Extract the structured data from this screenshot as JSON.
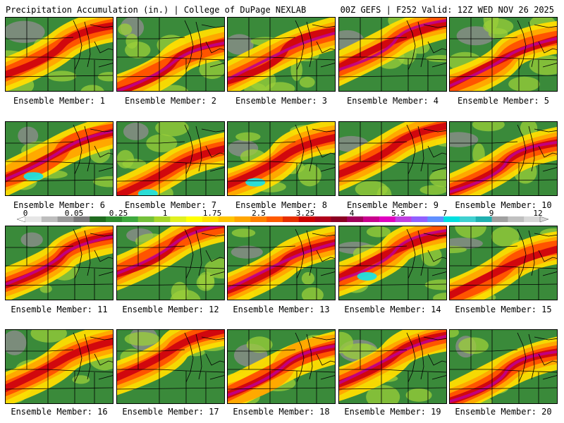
{
  "header": {
    "title": "Precipitation Accumulation (in.) | College of DuPage NEXLAB",
    "run_info": "00Z GEFS | F252 Valid: 12Z WED NOV 26 2025"
  },
  "members": [
    {
      "label": "Ensemble Member: 1"
    },
    {
      "label": "Ensemble Member: 2"
    },
    {
      "label": "Ensemble Member: 3"
    },
    {
      "label": "Ensemble Member: 4"
    },
    {
      "label": "Ensemble Member: 5"
    },
    {
      "label": "Ensemble Member: 6"
    },
    {
      "label": "Ensemble Member: 7"
    },
    {
      "label": "Ensemble Member: 8"
    },
    {
      "label": "Ensemble Member: 9"
    },
    {
      "label": "Ensemble Member: 10"
    },
    {
      "label": "Ensemble Member: 11"
    },
    {
      "label": "Ensemble Member: 12"
    },
    {
      "label": "Ensemble Member: 13"
    },
    {
      "label": "Ensemble Member: 14"
    },
    {
      "label": "Ensemble Member: 15"
    },
    {
      "label": "Ensemble Member: 16"
    },
    {
      "label": "Ensemble Member: 17"
    },
    {
      "label": "Ensemble Member: 18"
    },
    {
      "label": "Ensemble Member: 19"
    },
    {
      "label": "Ensemble Member: 20"
    }
  ],
  "legend": {
    "ticks": [
      "0",
      "0.05",
      "0.25",
      "1",
      "1.75",
      "2.5",
      "3.25",
      "4",
      "5.5",
      "7",
      "9",
      "12"
    ],
    "colors": [
      "#e6e6e6",
      "#bdbdbd",
      "#9b9b9b",
      "#7a7a7a",
      "#1f6b1f",
      "#2e8b2e",
      "#3ea83e",
      "#74c03a",
      "#a6d62a",
      "#e0f020",
      "#ffff00",
      "#ffe200",
      "#ffc400",
      "#ffa500",
      "#ff8000",
      "#ff5a00",
      "#e62e00",
      "#cc0000",
      "#b0001a",
      "#8b0022",
      "#a0005a",
      "#c8008c",
      "#e000c0",
      "#c040e0",
      "#9060ff",
      "#6090ff",
      "#00e0e0",
      "#40d0d0",
      "#20b0b0",
      "#a0a0a0",
      "#c0c0c0",
      "#d8d8d8"
    ]
  },
  "colors": {
    "dry": "#3a8a3a",
    "light": "#2c7a2c",
    "low": "#9bcf3a",
    "mid": "#ffdd00",
    "high": "#ffa500",
    "heavy": "#ff4a00",
    "extreme": "#cc0010",
    "max": "#8b0028",
    "magenta": "#c0008a",
    "cyan": "#20e0e0",
    "gray": "#8c8c8c"
  }
}
